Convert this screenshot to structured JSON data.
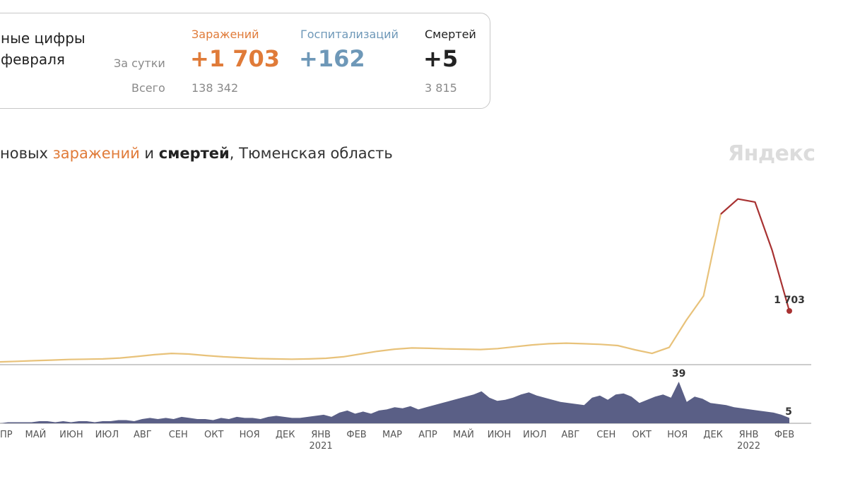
{
  "summary": {
    "title_line1": "ные цифры",
    "title_line2": "февраля",
    "row_daily": "За сутки",
    "row_total": "Всего",
    "infections": {
      "label": "Заражений",
      "daily": "+1 703",
      "total": "138 342"
    },
    "hospitalizations": {
      "label": "Госпитализаций",
      "daily": "+162"
    },
    "deaths": {
      "label": "Смертей",
      "daily": "+5",
      "total": "3 815"
    }
  },
  "subtitle": {
    "part1": "новых ",
    "part2": "заражений",
    "part3": " и ",
    "part4": "смертей",
    "part5": ", Тюменская область"
  },
  "watermark": "Яндекс",
  "colors": {
    "infections": "#e07b39",
    "hospitalizations": "#6e98b8",
    "deaths": "#222222",
    "line": "#e8c27a",
    "peak": "#a83232",
    "bars": "#5a5f86"
  },
  "chart_data": {
    "type": "line",
    "x_ticks": [
      {
        "label": "ПР"
      },
      {
        "label": "МАЙ"
      },
      {
        "label": "ИЮН"
      },
      {
        "label": "ИЮЛ"
      },
      {
        "label": "АВГ"
      },
      {
        "label": "СЕН"
      },
      {
        "label": "ОКТ"
      },
      {
        "label": "НОЯ"
      },
      {
        "label": "ДЕК"
      },
      {
        "label": "ЯНВ",
        "year": "2021"
      },
      {
        "label": "ФЕВ"
      },
      {
        "label": "МАР"
      },
      {
        "label": "АПР"
      },
      {
        "label": "МАЙ"
      },
      {
        "label": "ИЮН"
      },
      {
        "label": "ИЮЛ"
      },
      {
        "label": "АВГ"
      },
      {
        "label": "СЕН"
      },
      {
        "label": "ОКТ"
      },
      {
        "label": "НОЯ"
      },
      {
        "label": "ДЕК"
      },
      {
        "label": "ЯНВ",
        "year": "2022"
      },
      {
        "label": "ФЕВ"
      }
    ],
    "infections": {
      "name": "заражений",
      "values": [
        20,
        40,
        60,
        80,
        100,
        110,
        120,
        150,
        200,
        260,
        300,
        280,
        230,
        190,
        160,
        130,
        120,
        110,
        120,
        140,
        190,
        280,
        370,
        440,
        480,
        470,
        450,
        440,
        430,
        460,
        520,
        580,
        620,
        640,
        620,
        600,
        560,
        420,
        300,
        500,
        1400,
        2200,
        4900,
        5400,
        5300,
        3700,
        1703
      ],
      "end_label": "1 703",
      "ylim": [
        0,
        5600
      ]
    },
    "deaths": {
      "name": "смертей",
      "values": [
        0,
        1,
        1,
        1,
        1,
        2,
        2,
        1,
        2,
        1,
        2,
        2,
        1,
        2,
        2,
        3,
        3,
        2,
        4,
        5,
        4,
        5,
        4,
        6,
        5,
        4,
        4,
        3,
        5,
        4,
        6,
        5,
        5,
        4,
        6,
        7,
        6,
        5,
        5,
        6,
        7,
        8,
        6,
        10,
        12,
        9,
        11,
        9,
        12,
        13,
        15,
        14,
        16,
        13,
        15,
        17,
        19,
        21,
        23,
        25,
        27,
        30,
        24,
        21,
        22,
        24,
        27,
        29,
        26,
        24,
        22,
        20,
        19,
        18,
        17,
        24,
        26,
        22,
        27,
        28,
        25,
        19,
        22,
        25,
        27,
        24,
        39,
        20,
        25,
        23,
        19,
        18,
        17,
        15,
        14,
        13,
        12,
        11,
        10,
        8,
        5
      ],
      "peak_label": "39",
      "end_label": "5",
      "ylim": [
        0,
        45
      ]
    }
  }
}
